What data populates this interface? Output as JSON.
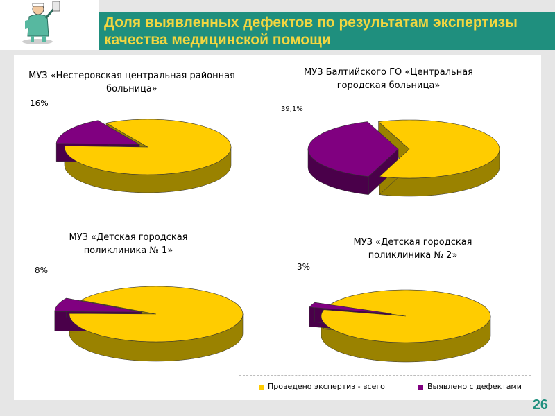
{
  "header": {
    "title": "Доля выявленных дефектов по результатам экспертизы качества медицинской помощи"
  },
  "page_number": "26",
  "colors": {
    "header_bg": "#1f8f7e",
    "title_text": "#f2d640",
    "series_total": "#ffcc00",
    "series_defects": "#800080"
  },
  "legend": {
    "items": [
      {
        "label": "Проведено экспертиз - всего",
        "color": "#ffcc00"
      },
      {
        "label": "Выявлено с дефектами",
        "color": "#800080"
      }
    ]
  },
  "chart_data": [
    {
      "type": "pie",
      "title": "МУЗ «Нестеровская центральная районная больница»",
      "series": [
        {
          "name": "Проведено экспертиз - всего",
          "value": 84
        },
        {
          "name": "Выявлено с дефектами",
          "value": 16,
          "label": "16%"
        }
      ]
    },
    {
      "type": "pie",
      "title": "МУЗ Балтийского ГО «Центральная городская больница»",
      "series": [
        {
          "name": "Проведено экспертиз - всего",
          "value": 60.9
        },
        {
          "name": "Выявлено с дефектами",
          "value": 39.1,
          "label": "39,1%"
        }
      ]
    },
    {
      "type": "pie",
      "title": "МУЗ «Детская городская поликлиника № 1»",
      "series": [
        {
          "name": "Проведено экспертиз - всего",
          "value": 92
        },
        {
          "name": "Выявлено с дефектами",
          "value": 8,
          "label": "8%"
        }
      ]
    },
    {
      "type": "pie",
      "title": "МУЗ «Детская городская поликлиника № 2»",
      "series": [
        {
          "name": "Проведено экспертиз - всего",
          "value": 97
        },
        {
          "name": "Выявлено с дефектами",
          "value": 3,
          "label": "3%"
        }
      ]
    }
  ]
}
